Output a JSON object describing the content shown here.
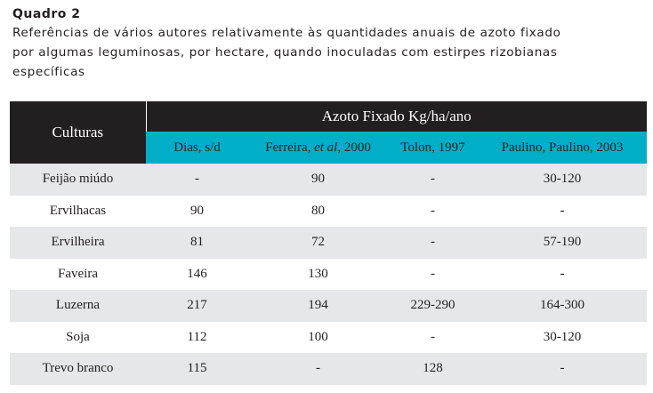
{
  "caption": {
    "title": "Quadro 2",
    "lines": [
      "Referências de vários autores relativamente às quantidades anuais de azoto fixado",
      "por algumas leguminosas, por hectare, quando inoculadas com estirpes rizobianas",
      "específicas"
    ]
  },
  "table": {
    "row_header": "Culturas",
    "group_header": "Azoto Fixado Kg/ha/ano",
    "columns": [
      {
        "pre": "Dias, s/d",
        "italic": "",
        "post": ""
      },
      {
        "pre": "Ferreira, ",
        "italic": "et al",
        "post": ", 2000"
      },
      {
        "pre": "Tolon, 1997",
        "italic": "",
        "post": ""
      },
      {
        "pre": "Paulino, Paulino, 2003",
        "italic": "",
        "post": ""
      }
    ],
    "rows": [
      {
        "name": "Feijão miúdo",
        "values": [
          "-",
          "90",
          "-",
          "30-120"
        ]
      },
      {
        "name": "Ervilhacas",
        "values": [
          "90",
          "80",
          "-",
          "-"
        ]
      },
      {
        "name": "Ervilheira",
        "values": [
          "81",
          "72",
          "-",
          "57-190"
        ]
      },
      {
        "name": "Faveira",
        "values": [
          "146",
          "130",
          "-",
          "-"
        ]
      },
      {
        "name": "Luzerna",
        "values": [
          "217",
          "194",
          "229-290",
          "164-300"
        ]
      },
      {
        "name": "Soja",
        "values": [
          "112",
          "100",
          "-",
          "30-120"
        ]
      },
      {
        "name": "Trevo branco",
        "values": [
          "115",
          "-",
          "128",
          "-"
        ]
      }
    ]
  },
  "colors": {
    "header_dark": "#231f20",
    "header_accent": "#00aec7",
    "row_shade": "#e6e7e8"
  }
}
